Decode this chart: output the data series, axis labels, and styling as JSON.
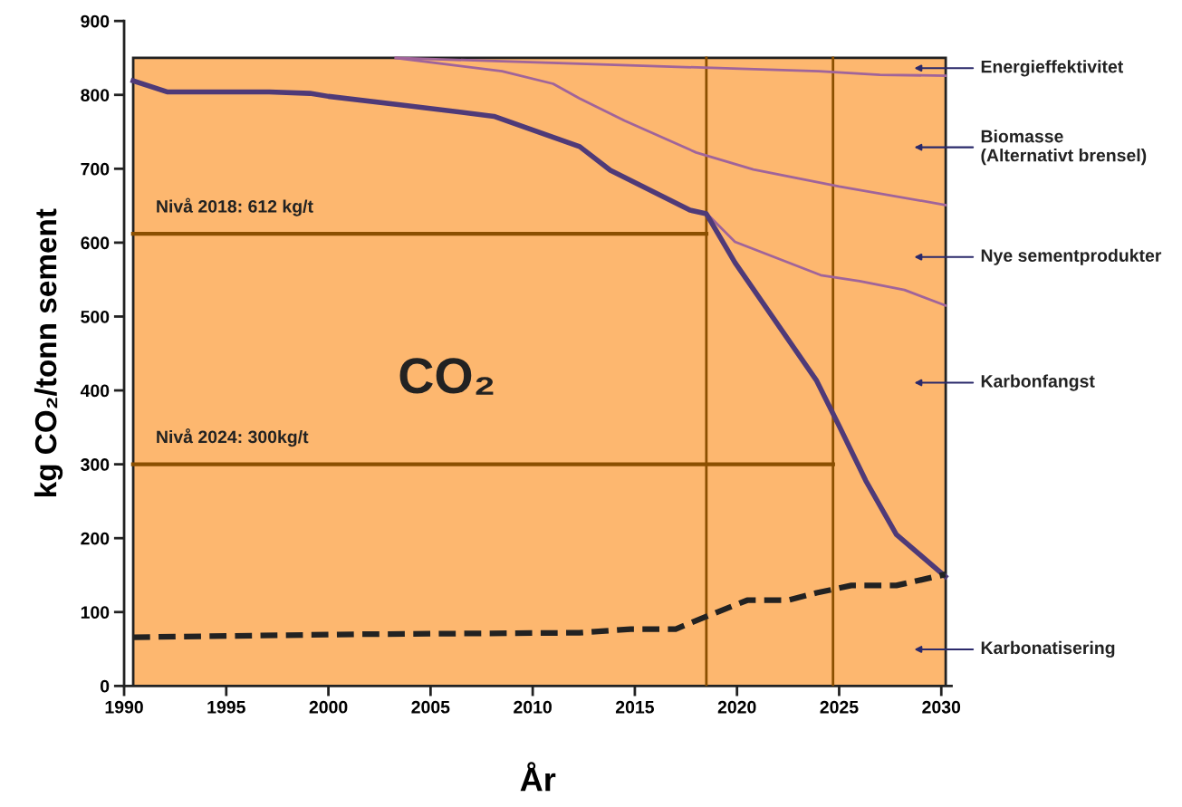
{
  "chart_data": {
    "type": "line",
    "xlabel": "År",
    "ylabel": "kg CO₂/tonn sement",
    "xlim": [
      1990,
      2030.5
    ],
    "ylim": [
      0,
      900
    ],
    "xticks": [
      1990,
      1995,
      2000,
      2005,
      2010,
      2015,
      2020,
      2025,
      2030
    ],
    "yticks": [
      0,
      100,
      200,
      300,
      400,
      500,
      600,
      700,
      800,
      900
    ],
    "grid": false,
    "bands": [
      {
        "axis": "y",
        "from": 0,
        "to": 850,
        "color": "#fdb76f"
      }
    ],
    "series": [
      {
        "color": "#8b4f00",
        "x": [
          2018.5,
          2018.5
        ],
        "values": [
          0,
          850
        ]
      },
      {
        "color": "#8b4f00",
        "x": [
          2024.7,
          2024.7
        ],
        "values": [
          0,
          850
        ]
      },
      {
        "name": "Nivå 2018: 612 kg/t",
        "color": "#8b4f00",
        "x": [
          1990.44,
          2018.5
        ],
        "values": [
          612,
          612
        ]
      },
      {
        "name": "Nivå 2024: 300kg/t",
        "color": "#8b4f00",
        "x": [
          1990.44,
          2024.7
        ],
        "values": [
          300,
          300
        ]
      },
      {
        "color": "#a0649a",
        "x": [
          2003.3,
          2014.7,
          2024,
          2027,
          2030.2
        ],
        "values": [
          850,
          840,
          832,
          827,
          826
        ]
      },
      {
        "color": "#a0649a",
        "x": [
          2003.3,
          2008.5,
          2011,
          2012.3,
          2014.5,
          2018,
          2020.8,
          2025,
          2030.2
        ],
        "values": [
          850,
          832,
          815,
          795,
          765,
          722,
          699,
          676,
          651
        ]
      },
      {
        "color": "#a0649a",
        "x": [
          2018.5,
          2019.9,
          2024.1,
          2026,
          2028.2,
          2030.2
        ],
        "values": [
          640,
          601,
          556,
          548,
          536,
          515
        ]
      },
      {
        "color": "#4f3a78",
        "x": [
          1990.44,
          1992.1,
          1997.1,
          1999.1,
          2000,
          2003.7,
          2008.1,
          2012.3,
          2013.8,
          2017.7,
          2018.5,
          2019.9,
          2023.9,
          2025,
          2026.3,
          2027.8,
          2030.2
        ],
        "values": [
          819,
          804,
          804,
          802,
          798,
          786,
          771,
          730,
          698,
          644,
          639,
          573,
          413,
          352,
          278,
          205,
          148
        ]
      },
      {
        "color": "#222222",
        "line_style": "dashed",
        "x": [
          1990.44,
          2001.5,
          2012.3,
          2014.8,
          2017,
          2018.5,
          2020.5,
          2022.5,
          2023.9,
          2025.6,
          2027.8,
          2030.2
        ],
        "values": [
          66,
          70,
          72,
          77,
          77,
          94,
          116,
          116,
          126,
          136,
          136,
          151
        ]
      }
    ],
    "annotations": [
      "CO₂",
      "Energieffektivitet",
      "Biomasse\n(Alternativt brensel)",
      "Nye sementprodukter",
      "Karbonfangst",
      "Karbonatisering"
    ]
  }
}
